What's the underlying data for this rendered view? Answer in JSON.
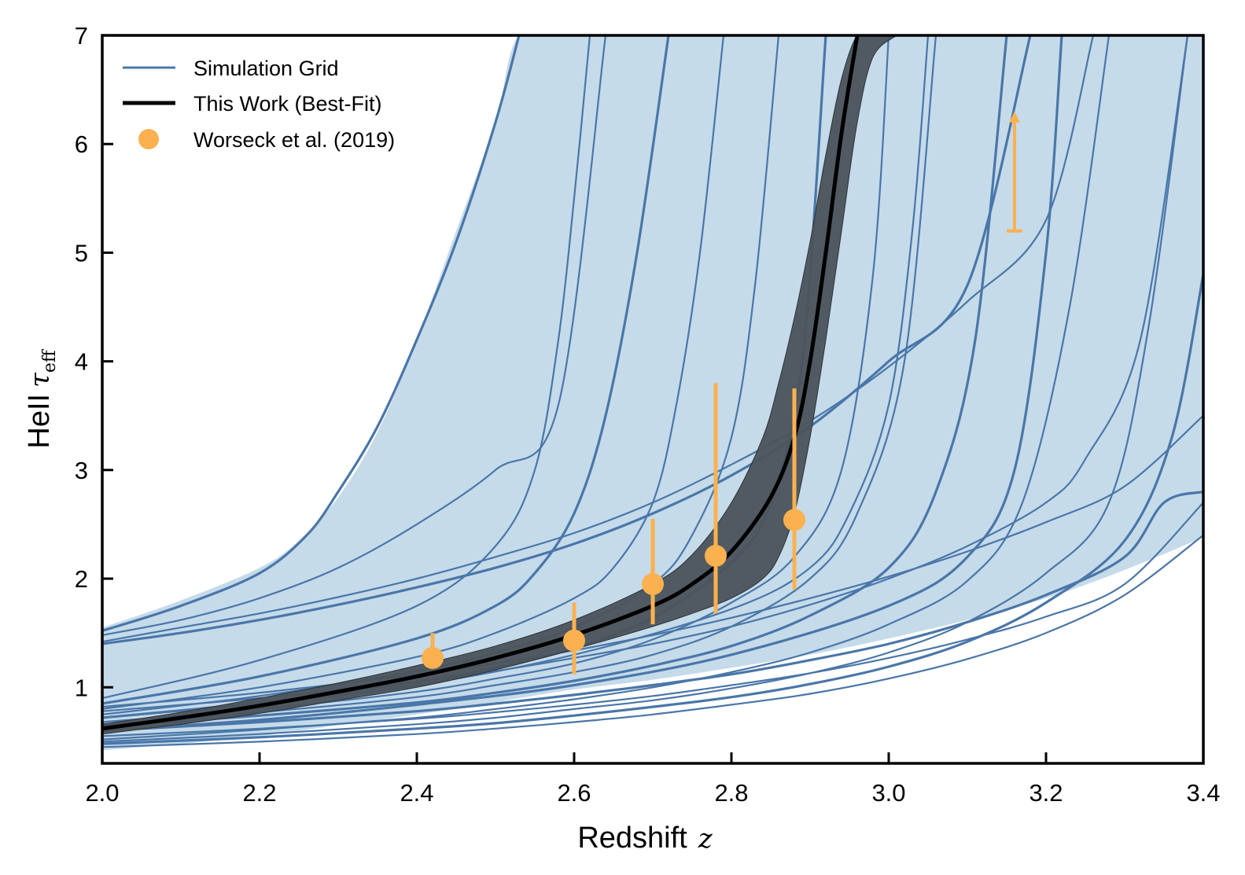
{
  "chart_data": {
    "type": "line",
    "xlabel": "Redshift",
    "xlabel_symbol": "z",
    "ylabel": "HeII",
    "ylabel_symbol": "τ",
    "ylabel_subscript": "eff",
    "xlim": [
      2.0,
      3.4
    ],
    "ylim": [
      0.3,
      7.0
    ],
    "xticks": [
      "2.0",
      "2.2",
      "2.4",
      "2.6",
      "2.8",
      "3.0",
      "3.2",
      "3.4"
    ],
    "yticks": [
      "1",
      "2",
      "3",
      "4",
      "5",
      "6",
      "7"
    ],
    "grid": false,
    "legend_position": "top-left",
    "colors": {
      "grid_line": "#4a76a8",
      "grid_fill": "#c5dbea",
      "best_fit": "#000000",
      "best_fit_band": "#4b535b",
      "data_points": "#fbb14f"
    },
    "legend": [
      {
        "label": "Simulation Grid",
        "marker": "line",
        "color": "#4a76a8"
      },
      {
        "label": "This Work (Best-Fit)",
        "marker": "line",
        "color": "#000000"
      },
      {
        "label": "Worseck et al. (2019)",
        "marker": "point",
        "color": "#fbb14f"
      }
    ],
    "envelope": {
      "z": [
        2.0,
        2.1,
        2.2,
        2.25,
        2.3,
        2.35,
        2.4,
        2.45,
        2.5,
        2.53,
        2.6,
        2.7,
        2.8,
        2.9,
        3.0,
        3.1,
        3.2,
        3.3,
        3.4
      ],
      "upper": [
        1.55,
        1.8,
        2.1,
        2.35,
        2.75,
        3.35,
        4.2,
        5.2,
        6.2,
        7.0,
        7.0,
        7.0,
        7.0,
        7.0,
        7.0,
        7.0,
        7.0,
        7.0,
        7.0
      ],
      "lower": [
        0.42,
        0.48,
        0.55,
        0.6,
        0.65,
        0.7,
        0.75,
        0.8,
        0.86,
        0.9,
        0.98,
        1.07,
        1.18,
        1.3,
        1.45,
        1.62,
        1.82,
        2.08,
        2.38
      ]
    },
    "series": [
      {
        "name": "Simulation Grid",
        "x": [
          2.0,
          2.1,
          2.2,
          2.26,
          2.3,
          2.35,
          2.4,
          2.45,
          2.5,
          2.53
        ],
        "y": [
          1.52,
          1.75,
          2.05,
          2.4,
          2.8,
          3.4,
          4.2,
          5.1,
          6.2,
          7.0
        ]
      },
      {
        "x": [
          2.0,
          2.1,
          2.2,
          2.3,
          2.4,
          2.5,
          2.58,
          2.64
        ],
        "y": [
          1.48,
          1.62,
          1.82,
          2.1,
          2.5,
          3.0,
          3.6,
          7.0
        ]
      },
      {
        "x": [
          2.0,
          2.1,
          2.2,
          2.3,
          2.4,
          2.5,
          2.6,
          2.7,
          2.8,
          2.9,
          3.0,
          3.1,
          3.2,
          3.26
        ],
        "y": [
          1.42,
          1.55,
          1.68,
          1.83,
          2.0,
          2.2,
          2.42,
          2.7,
          3.05,
          3.45,
          3.95,
          4.55,
          5.3,
          7.0
        ]
      },
      {
        "x": [
          2.0,
          2.1,
          2.2,
          2.3,
          2.4,
          2.5,
          2.6,
          2.7,
          2.8,
          2.9,
          3.0,
          3.1,
          3.18
        ],
        "y": [
          1.4,
          1.5,
          1.62,
          1.76,
          1.92,
          2.1,
          2.32,
          2.6,
          2.95,
          3.4,
          4.0,
          4.7,
          7.0
        ]
      },
      {
        "x": [
          2.0,
          2.2,
          2.4,
          2.5,
          2.6,
          2.7,
          2.8,
          2.9,
          3.0,
          3.1,
          3.2,
          3.3,
          3.4
        ],
        "y": [
          0.82,
          0.95,
          1.12,
          1.22,
          1.34,
          1.48,
          1.64,
          1.82,
          2.02,
          2.25,
          2.52,
          2.85,
          3.5
        ]
      },
      {
        "x": [
          2.0,
          2.2,
          2.4,
          2.5,
          2.6,
          2.7,
          2.8,
          2.9,
          3.0,
          3.1,
          3.2,
          3.25,
          3.32,
          3.38
        ],
        "y": [
          0.78,
          0.9,
          1.05,
          1.15,
          1.27,
          1.4,
          1.56,
          1.76,
          2.0,
          2.3,
          2.7,
          3.1,
          4.2,
          7.0
        ]
      },
      {
        "x": [
          2.0,
          2.2,
          2.4,
          2.5,
          2.6,
          2.7,
          2.8,
          2.9,
          3.0,
          3.1,
          3.2,
          3.3,
          3.35,
          3.4
        ],
        "y": [
          0.6,
          0.68,
          0.78,
          0.85,
          0.93,
          1.02,
          1.12,
          1.25,
          1.4,
          1.6,
          1.85,
          2.2,
          2.7,
          2.8
        ]
      },
      {
        "x": [
          2.0,
          2.2,
          2.4,
          2.5,
          2.6,
          2.7,
          2.8,
          2.9,
          3.0,
          3.1,
          3.2,
          3.3,
          3.4
        ],
        "y": [
          0.55,
          0.62,
          0.71,
          0.77,
          0.84,
          0.92,
          1.02,
          1.13,
          1.27,
          1.44,
          1.65,
          1.95,
          2.7
        ]
      },
      {
        "x": [
          2.0,
          2.2,
          2.4,
          2.5,
          2.6,
          2.7,
          2.8,
          2.9,
          3.0,
          3.1,
          3.2,
          3.3,
          3.4
        ],
        "y": [
          0.45,
          0.5,
          0.57,
          0.62,
          0.68,
          0.75,
          0.84,
          0.94,
          1.08,
          1.26,
          1.5,
          1.85,
          2.4
        ]
      },
      {
        "x": [
          2.0,
          2.2,
          2.4,
          2.5,
          2.55,
          2.6,
          2.64,
          2.68,
          2.72
        ],
        "y": [
          0.85,
          1.1,
          1.45,
          1.75,
          2.05,
          2.6,
          3.5,
          5.0,
          7.0
        ]
      },
      {
        "x": [
          2.0,
          2.2,
          2.4,
          2.5,
          2.6,
          2.65,
          2.7,
          2.73,
          2.76,
          2.79
        ],
        "y": [
          0.8,
          1.0,
          1.28,
          1.5,
          1.82,
          2.1,
          2.7,
          3.6,
          5.0,
          7.0
        ]
      },
      {
        "x": [
          2.0,
          2.2,
          2.4,
          2.5,
          2.6,
          2.7,
          2.75,
          2.8,
          2.83,
          2.86
        ],
        "y": [
          0.75,
          0.92,
          1.15,
          1.32,
          1.55,
          1.95,
          2.4,
          3.3,
          4.7,
          7.0
        ]
      },
      {
        "x": [
          2.0,
          2.2,
          2.4,
          2.5,
          2.6,
          2.7,
          2.8,
          2.85,
          2.89,
          2.92
        ],
        "y": [
          0.72,
          0.86,
          1.05,
          1.18,
          1.36,
          1.64,
          2.15,
          2.7,
          4.0,
          7.0
        ]
      },
      {
        "x": [
          2.0,
          2.2,
          2.4,
          2.5,
          2.6,
          2.7,
          2.8,
          2.88,
          2.94,
          2.98,
          3.0
        ],
        "y": [
          0.68,
          0.8,
          0.96,
          1.08,
          1.22,
          1.44,
          1.78,
          2.2,
          3.0,
          4.8,
          7.0
        ]
      },
      {
        "x": [
          2.0,
          2.2,
          2.4,
          2.5,
          2.6,
          2.7,
          2.8,
          2.9,
          2.96,
          3.02,
          3.06
        ],
        "y": [
          0.66,
          0.77,
          0.91,
          1.02,
          1.14,
          1.3,
          1.56,
          2.0,
          2.6,
          4.0,
          7.0
        ]
      },
      {
        "x": [
          2.0,
          2.2,
          2.4,
          2.5,
          2.6,
          2.7,
          2.8,
          2.9,
          3.0,
          3.06,
          3.11,
          3.15
        ],
        "y": [
          0.64,
          0.74,
          0.86,
          0.95,
          1.06,
          1.2,
          1.38,
          1.66,
          2.1,
          2.8,
          4.2,
          7.0
        ]
      },
      {
        "x": [
          2.0,
          2.2,
          2.4,
          2.5,
          2.6,
          2.7,
          2.8,
          2.9,
          3.0,
          3.1,
          3.17,
          3.23,
          3.28
        ],
        "y": [
          0.52,
          0.61,
          0.72,
          0.8,
          0.89,
          1.0,
          1.14,
          1.32,
          1.58,
          1.98,
          2.7,
          4.5,
          7.0
        ]
      },
      {
        "x": [
          2.0,
          2.2,
          2.4,
          2.5,
          2.6,
          2.7,
          2.8,
          2.9,
          3.0,
          3.1,
          3.2,
          3.28,
          3.33,
          3.38
        ],
        "y": [
          0.5,
          0.57,
          0.66,
          0.72,
          0.8,
          0.88,
          0.99,
          1.13,
          1.32,
          1.6,
          2.05,
          2.7,
          4.3,
          7.0
        ]
      },
      {
        "x": [
          2.0,
          2.2,
          2.4,
          2.5,
          2.6,
          2.7,
          2.8,
          2.9,
          3.0,
          3.1,
          3.2,
          3.3,
          3.36,
          3.4
        ],
        "y": [
          0.48,
          0.54,
          0.62,
          0.67,
          0.74,
          0.82,
          0.91,
          1.03,
          1.19,
          1.42,
          1.78,
          2.35,
          3.3,
          4.8
        ]
      },
      {
        "x": [
          2.0,
          2.2,
          2.4,
          2.5,
          2.55,
          2.58,
          2.6,
          2.62
        ],
        "y": [
          0.9,
          1.25,
          1.75,
          2.3,
          3.0,
          4.2,
          5.5,
          7.0
        ]
      },
      {
        "x": [
          2.0,
          2.2,
          2.4,
          2.6,
          2.8,
          2.9,
          2.95,
          3.0,
          3.03,
          3.05
        ],
        "y": [
          0.72,
          0.85,
          1.02,
          1.3,
          1.72,
          2.1,
          2.6,
          3.6,
          5.2,
          7.0
        ]
      },
      {
        "x": [
          2.0,
          2.2,
          2.4,
          2.6,
          2.8,
          3.0,
          3.1,
          3.16,
          3.2,
          3.22
        ],
        "y": [
          0.6,
          0.7,
          0.84,
          1.02,
          1.3,
          1.75,
          2.2,
          3.0,
          5.0,
          7.0
        ]
      },
      {
        "name": "This Work (Best-Fit)",
        "x": [
          2.0,
          2.1,
          2.2,
          2.3,
          2.4,
          2.5,
          2.6,
          2.7,
          2.75,
          2.8,
          2.85,
          2.88,
          2.9,
          2.92,
          2.94,
          2.96
        ],
        "y": [
          0.62,
          0.72,
          0.83,
          0.96,
          1.1,
          1.27,
          1.48,
          1.75,
          1.95,
          2.25,
          2.75,
          3.3,
          4.0,
          5.0,
          6.1,
          7.0
        ]
      }
    ],
    "best_fit_band": {
      "z": [
        2.0,
        2.1,
        2.2,
        2.3,
        2.4,
        2.5,
        2.6,
        2.7,
        2.75,
        2.8,
        2.84,
        2.86,
        2.88,
        2.9,
        2.92,
        2.94,
        2.96,
        2.98,
        3.01
      ],
      "upper": [
        0.66,
        0.77,
        0.9,
        1.04,
        1.2,
        1.38,
        1.62,
        1.95,
        2.22,
        2.7,
        3.3,
        3.8,
        4.4,
        5.1,
        5.9,
        6.6,
        7.0,
        7.0,
        7.0
      ],
      "lower": [
        0.57,
        0.66,
        0.76,
        0.88,
        1.0,
        1.16,
        1.35,
        1.56,
        1.68,
        1.82,
        2.0,
        2.2,
        2.6,
        3.3,
        4.2,
        5.2,
        6.2,
        6.8,
        7.0
      ]
    },
    "data_points": [
      {
        "z": 2.42,
        "tau": 1.27,
        "err_low": 1.2,
        "err_high": 1.5
      },
      {
        "z": 2.6,
        "tau": 1.43,
        "err_low": 1.12,
        "err_high": 1.78
      },
      {
        "z": 2.7,
        "tau": 1.95,
        "err_low": 1.58,
        "err_high": 2.55
      },
      {
        "z": 2.78,
        "tau": 2.21,
        "err_low": 1.68,
        "err_high": 3.8
      },
      {
        "z": 2.88,
        "tau": 2.54,
        "err_low": 1.9,
        "err_high": 3.75
      }
    ],
    "lower_limits": [
      {
        "z": 3.16,
        "tau": 5.2,
        "arrow_to": 6.3
      }
    ]
  }
}
